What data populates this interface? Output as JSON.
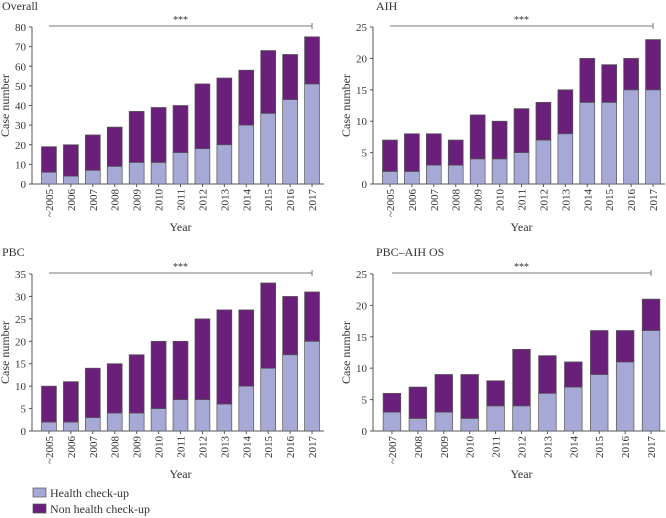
{
  "chart_data": [
    {
      "type": "bar",
      "stacked": true,
      "title": "Overall",
      "xlabel": "Year",
      "ylabel": "Case number",
      "ylim": [
        0,
        80
      ],
      "yticks": [
        0,
        10,
        20,
        30,
        40,
        50,
        60,
        70,
        80
      ],
      "significance": "***",
      "categories": [
        "~2005",
        "2006",
        "2007",
        "2008",
        "2009",
        "2010",
        "2011",
        "2012",
        "2013",
        "2014",
        "2015",
        "2016",
        "2017"
      ],
      "series": [
        {
          "name": "Health check-up",
          "values": [
            6,
            4,
            7,
            9,
            11,
            11,
            16,
            18,
            20,
            30,
            36,
            43,
            51
          ]
        },
        {
          "name": "Non health check-up",
          "values": [
            13,
            16,
            18,
            20,
            26,
            28,
            24,
            33,
            34,
            28,
            32,
            23,
            24
          ]
        }
      ],
      "totals": [
        19,
        20,
        25,
        29,
        37,
        39,
        40,
        51,
        54,
        58,
        68,
        66,
        75
      ]
    },
    {
      "type": "bar",
      "stacked": true,
      "title": "AIH",
      "xlabel": "Year",
      "ylabel": "Case number",
      "ylim": [
        0,
        25
      ],
      "yticks": [
        0,
        5,
        10,
        15,
        20,
        25
      ],
      "significance": "***",
      "categories": [
        "~2005",
        "2006",
        "2007",
        "2008",
        "2009",
        "2010",
        "2011",
        "2012",
        "2013",
        "2014",
        "2015",
        "2016",
        "2017"
      ],
      "series": [
        {
          "name": "Health check-up",
          "values": [
            2,
            2,
            3,
            3,
            4,
            4,
            5,
            7,
            8,
            13,
            13,
            15,
            15
          ]
        },
        {
          "name": "Non health check-up",
          "values": [
            5,
            6,
            5,
            4,
            7,
            6,
            7,
            6,
            7,
            7,
            6,
            5,
            8
          ]
        }
      ],
      "totals": [
        7,
        8,
        8,
        7,
        11,
        10,
        12,
        13,
        15,
        20,
        19,
        20,
        23
      ]
    },
    {
      "type": "bar",
      "stacked": true,
      "title": "PBC",
      "xlabel": "Year",
      "ylabel": "Case number",
      "ylim": [
        0,
        35
      ],
      "yticks": [
        0,
        5,
        10,
        15,
        20,
        25,
        30,
        35
      ],
      "significance": "***",
      "categories": [
        "~2005",
        "2006",
        "2007",
        "2008",
        "2009",
        "2010",
        "2011",
        "2012",
        "2013",
        "2014",
        "2015",
        "2016",
        "2017"
      ],
      "series": [
        {
          "name": "Health check-up",
          "values": [
            2,
            2,
            3,
            4,
            4,
            5,
            7,
            7,
            6,
            10,
            14,
            17,
            20
          ]
        },
        {
          "name": "Non health check-up",
          "values": [
            8,
            9,
            11,
            11,
            13,
            15,
            13,
            18,
            21,
            17,
            19,
            13,
            11
          ]
        }
      ],
      "totals": [
        10,
        11,
        14,
        15,
        17,
        20,
        20,
        25,
        27,
        27,
        33,
        30,
        31
      ]
    },
    {
      "type": "bar",
      "stacked": true,
      "title": "PBC–AIH OS",
      "xlabel": "Year",
      "ylabel": "Case number",
      "ylim": [
        0,
        25
      ],
      "yticks": [
        0,
        5,
        10,
        15,
        20,
        25
      ],
      "significance": "***",
      "categories": [
        "~2007",
        "2008",
        "2009",
        "2010",
        "2011",
        "2012",
        "2013",
        "2014",
        "2015",
        "2016",
        "2017"
      ],
      "series": [
        {
          "name": "Health check-up",
          "values": [
            3,
            2,
            3,
            2,
            4,
            4,
            6,
            7,
            9,
            11,
            16
          ]
        },
        {
          "name": "Non health check-up",
          "values": [
            3,
            5,
            6,
            7,
            4,
            9,
            6,
            4,
            7,
            5,
            5
          ]
        }
      ],
      "totals": [
        6,
        7,
        9,
        9,
        8,
        13,
        12,
        11,
        16,
        16,
        21
      ]
    }
  ],
  "legend": [
    {
      "label": "Health check-up",
      "color": "#a6a9d6"
    },
    {
      "label": "Non health check-up",
      "color": "#6a1f7a"
    }
  ]
}
